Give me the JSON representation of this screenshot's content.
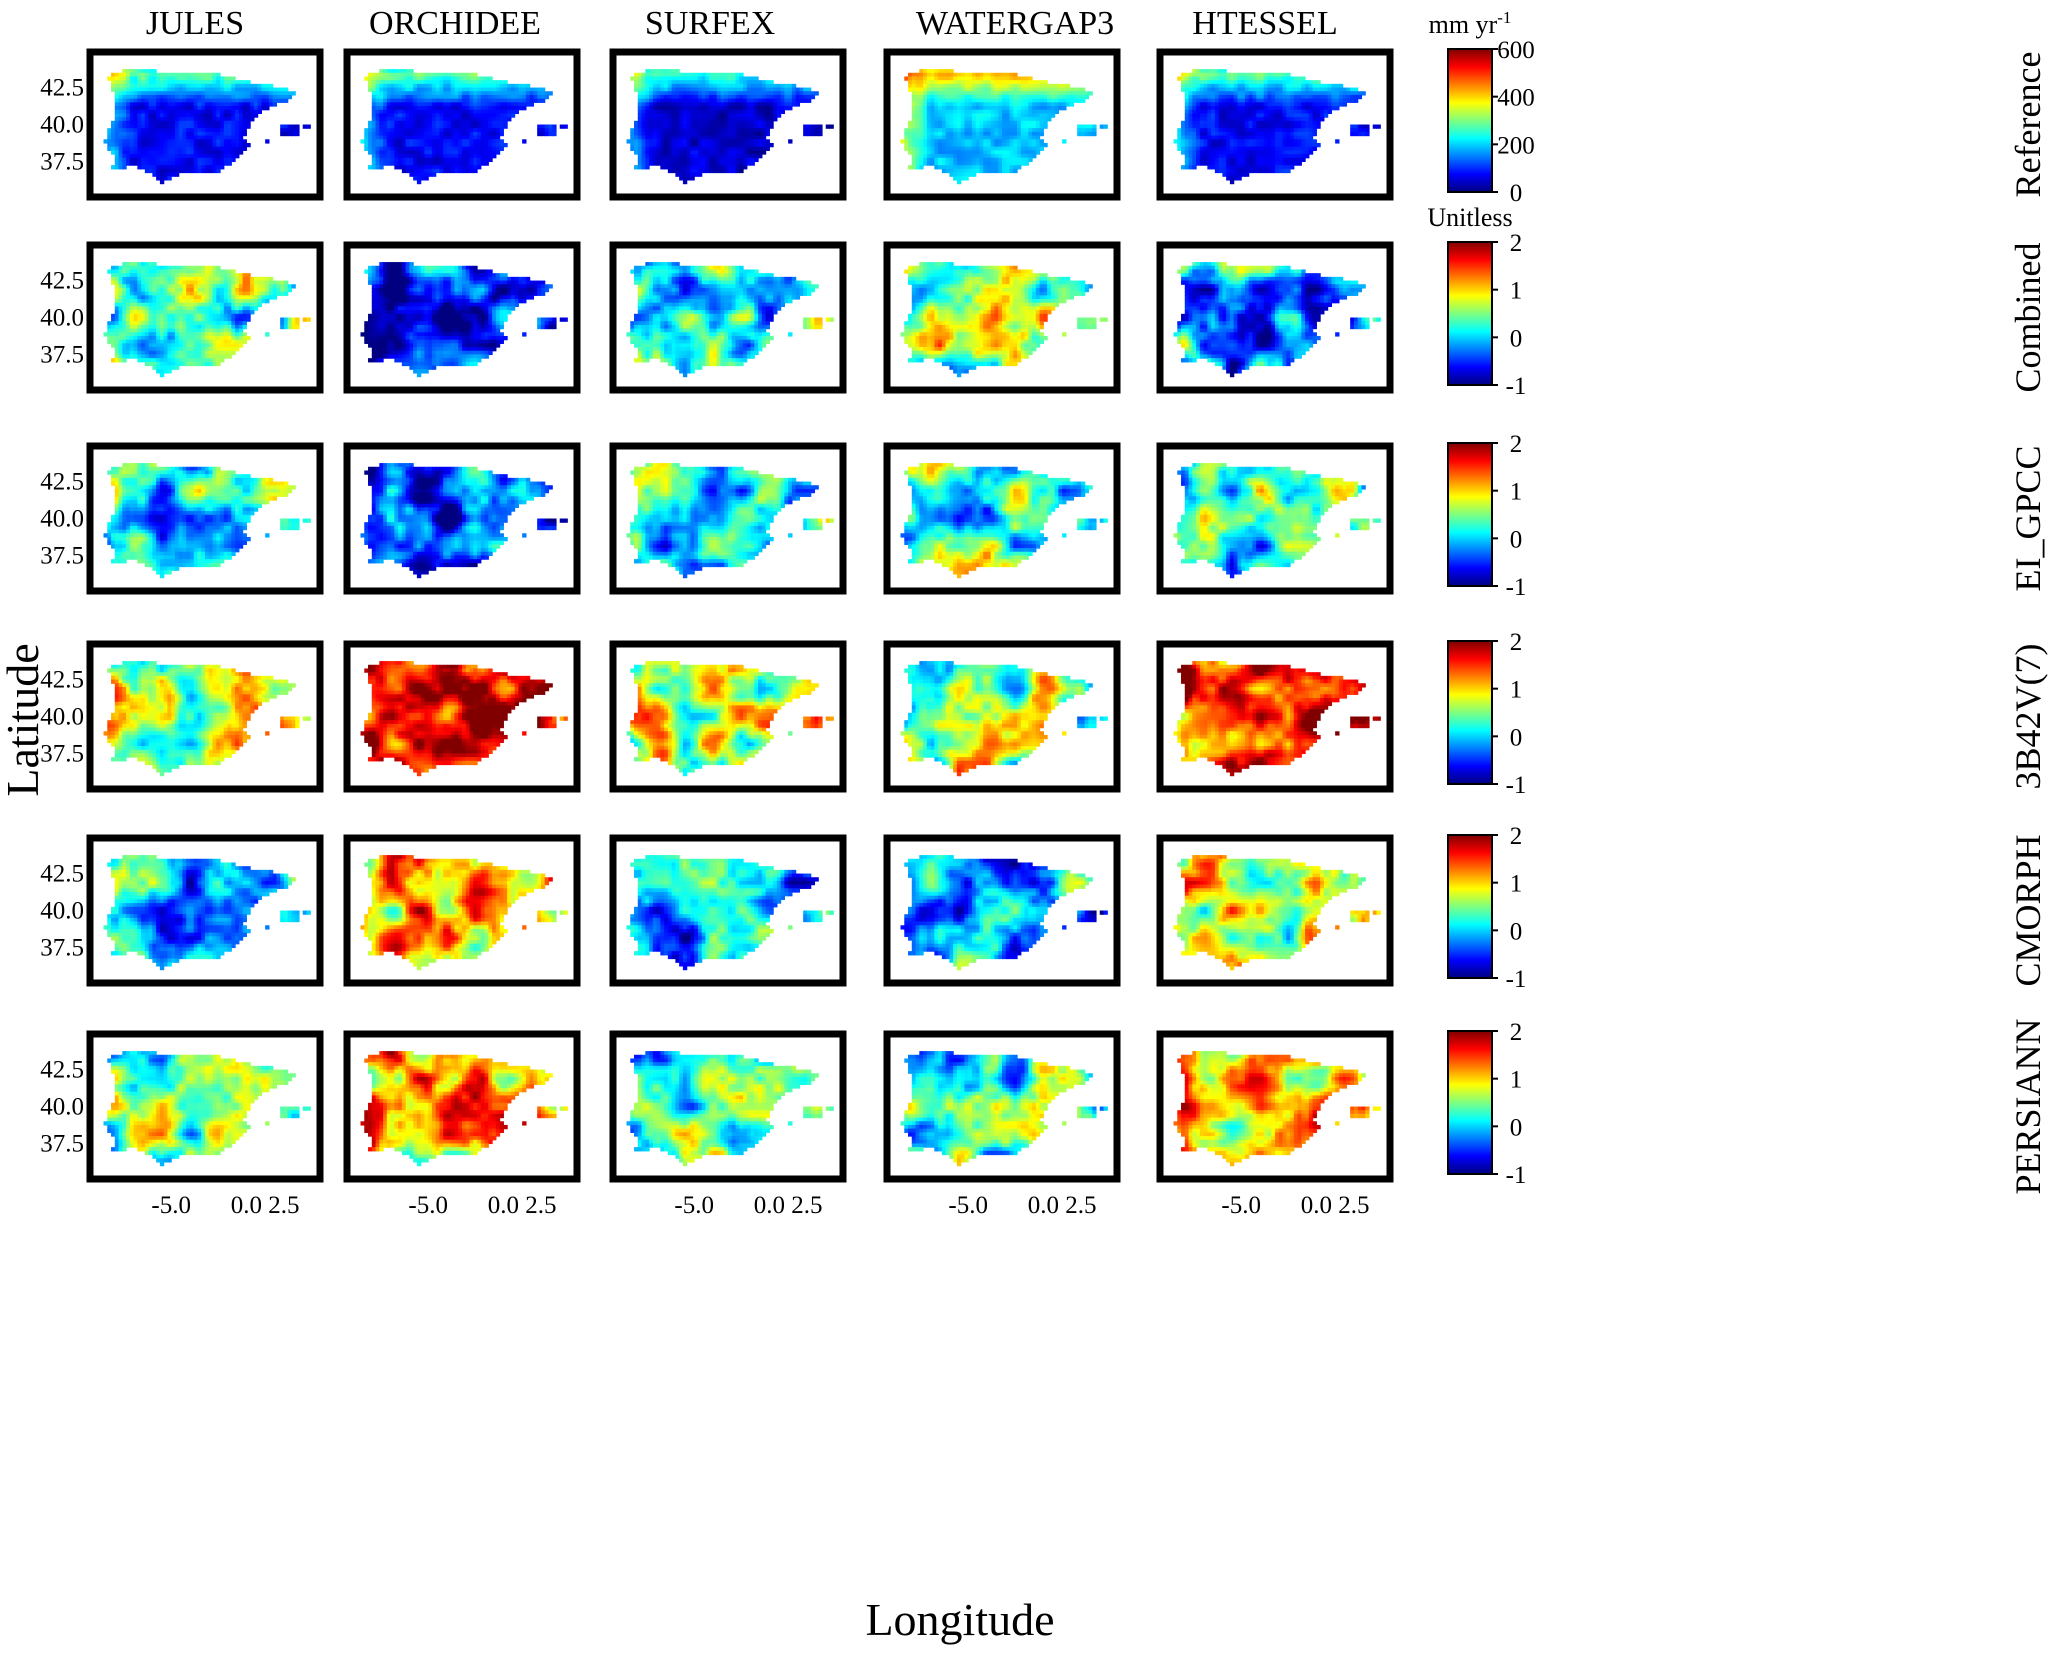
{
  "chart_data": {
    "type": "heatmap",
    "xlabel": "Longitude",
    "ylabel": "Latitude",
    "models": [
      "JULES",
      "ORCHIDEE",
      "SURFEX",
      "WATERGAP3",
      "HTESSEL"
    ],
    "rows": [
      {
        "label": "Reference",
        "unit_label": "mm yr",
        "unit_superscript": "-1",
        "colorbar_ticks": [
          "0",
          "200",
          "400",
          "600"
        ],
        "clim": [
          0,
          600
        ]
      },
      {
        "label": "Combined",
        "unit_label": "Unitless",
        "colorbar_ticks": [
          "-1",
          "0",
          "1",
          "2"
        ],
        "clim": [
          -1,
          2
        ]
      },
      {
        "label": "EI_GPCC",
        "unit_label": "",
        "colorbar_ticks": [
          "-1",
          "0",
          "1",
          "2"
        ],
        "clim": [
          -1,
          2
        ]
      },
      {
        "label": "3B42V(7)",
        "unit_label": "",
        "colorbar_ticks": [
          "-1",
          "0",
          "1",
          "2"
        ],
        "clim": [
          -1,
          2
        ]
      },
      {
        "label": "CMORPH",
        "unit_label": "",
        "colorbar_ticks": [
          "-1",
          "0",
          "1",
          "2"
        ],
        "clim": [
          -1,
          2
        ]
      },
      {
        "label": "PERSIANN",
        "unit_label": "",
        "colorbar_ticks": [
          "-1",
          "0",
          "1",
          "2"
        ],
        "clim": [
          -1,
          2
        ]
      }
    ],
    "x_ticks": [
      -5.0,
      0.0,
      2.5
    ],
    "x_tick_labels": [
      "-5.0",
      "0.0",
      "2.5"
    ],
    "y_ticks": [
      42.5,
      40.0,
      37.5
    ],
    "y_tick_labels": [
      "42.5",
      "40.0",
      "37.5"
    ],
    "xlim": [
      -10,
      4.5
    ],
    "ylim": [
      35.5,
      44.5
    ],
    "colormap": "jet",
    "mean_level": [
      [
        0.12,
        0.12,
        0.08,
        0.32,
        0.12
      ],
      [
        0.45,
        0.18,
        0.42,
        0.48,
        0.32
      ],
      [
        0.38,
        0.15,
        0.4,
        0.42,
        0.42
      ],
      [
        0.55,
        0.92,
        0.6,
        0.5,
        0.9
      ],
      [
        0.35,
        0.72,
        0.3,
        0.3,
        0.62
      ],
      [
        0.45,
        0.7,
        0.4,
        0.42,
        0.68
      ]
    ]
  }
}
